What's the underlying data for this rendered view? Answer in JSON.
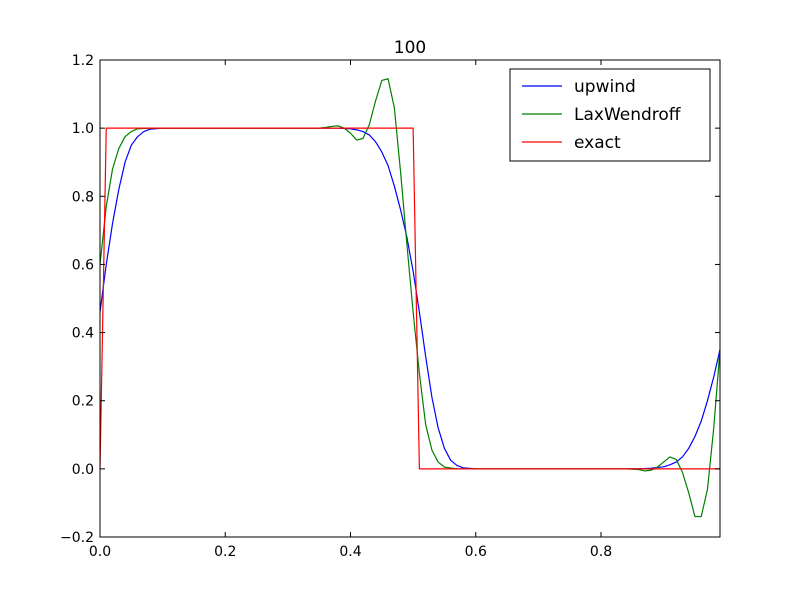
{
  "chart_data": {
    "type": "line",
    "title": "100",
    "xlabel": "",
    "ylabel": "",
    "xlim": [
      0.0,
      0.99
    ],
    "ylim": [
      -0.2,
      1.2
    ],
    "xticks": [
      "0.0",
      "0.2",
      "0.4",
      "0.6",
      "0.8"
    ],
    "xtick_values": [
      0.0,
      0.2,
      0.4,
      0.6,
      0.8
    ],
    "yticks": [
      "−0.2",
      "0.0",
      "0.2",
      "0.4",
      "0.6",
      "0.8",
      "1.0",
      "1.2"
    ],
    "ytick_values": [
      -0.2,
      0.0,
      0.2,
      0.4,
      0.6,
      0.8,
      1.0,
      1.2
    ],
    "grid": false,
    "legend_position": "top-right",
    "series": [
      {
        "name": "upwind",
        "color": "#0000ff",
        "points": [
          [
            0.0,
            0.46
          ],
          [
            0.01,
            0.6
          ],
          [
            0.02,
            0.72
          ],
          [
            0.03,
            0.82
          ],
          [
            0.04,
            0.9
          ],
          [
            0.05,
            0.95
          ],
          [
            0.06,
            0.975
          ],
          [
            0.07,
            0.99
          ],
          [
            0.08,
            0.997
          ],
          [
            0.1,
            1.0
          ],
          [
            0.3,
            1.0
          ],
          [
            0.36,
            1.0
          ],
          [
            0.38,
            1.0
          ],
          [
            0.4,
            0.998
          ],
          [
            0.41,
            0.995
          ],
          [
            0.42,
            0.99
          ],
          [
            0.43,
            0.98
          ],
          [
            0.44,
            0.96
          ],
          [
            0.45,
            0.93
          ],
          [
            0.46,
            0.89
          ],
          [
            0.47,
            0.83
          ],
          [
            0.48,
            0.76
          ],
          [
            0.49,
            0.68
          ],
          [
            0.5,
            0.58
          ],
          [
            0.51,
            0.46
          ],
          [
            0.52,
            0.33
          ],
          [
            0.53,
            0.21
          ],
          [
            0.54,
            0.12
          ],
          [
            0.55,
            0.06
          ],
          [
            0.56,
            0.025
          ],
          [
            0.57,
            0.01
          ],
          [
            0.58,
            0.003
          ],
          [
            0.6,
            0.0
          ],
          [
            0.86,
            0.0
          ],
          [
            0.88,
            0.002
          ],
          [
            0.9,
            0.006
          ],
          [
            0.91,
            0.012
          ],
          [
            0.92,
            0.02
          ],
          [
            0.93,
            0.035
          ],
          [
            0.94,
            0.06
          ],
          [
            0.95,
            0.095
          ],
          [
            0.96,
            0.14
          ],
          [
            0.97,
            0.2
          ],
          [
            0.98,
            0.27
          ],
          [
            0.99,
            0.35
          ]
        ]
      },
      {
        "name": "LaxWendroff",
        "color": "#008000",
        "points": [
          [
            0.0,
            0.6
          ],
          [
            0.01,
            0.77
          ],
          [
            0.02,
            0.88
          ],
          [
            0.03,
            0.94
          ],
          [
            0.04,
            0.975
          ],
          [
            0.05,
            0.99
          ],
          [
            0.06,
            0.998
          ],
          [
            0.08,
            1.0
          ],
          [
            0.32,
            1.0
          ],
          [
            0.35,
            1.0
          ],
          [
            0.36,
            1.002
          ],
          [
            0.37,
            1.005
          ],
          [
            0.38,
            1.007
          ],
          [
            0.39,
            1.0
          ],
          [
            0.4,
            0.985
          ],
          [
            0.41,
            0.965
          ],
          [
            0.42,
            0.97
          ],
          [
            0.43,
            1.01
          ],
          [
            0.44,
            1.08
          ],
          [
            0.45,
            1.14
          ],
          [
            0.46,
            1.145
          ],
          [
            0.47,
            1.06
          ],
          [
            0.48,
            0.87
          ],
          [
            0.49,
            0.66
          ],
          [
            0.5,
            0.46
          ],
          [
            0.51,
            0.28
          ],
          [
            0.52,
            0.13
          ],
          [
            0.53,
            0.055
          ],
          [
            0.54,
            0.02
          ],
          [
            0.55,
            0.005
          ],
          [
            0.57,
            0.0
          ],
          [
            0.84,
            0.0
          ],
          [
            0.86,
            -0.002
          ],
          [
            0.87,
            -0.006
          ],
          [
            0.88,
            -0.004
          ],
          [
            0.89,
            0.005
          ],
          [
            0.9,
            0.02
          ],
          [
            0.91,
            0.035
          ],
          [
            0.92,
            0.028
          ],
          [
            0.93,
            -0.01
          ],
          [
            0.94,
            -0.07
          ],
          [
            0.95,
            -0.14
          ],
          [
            0.96,
            -0.14
          ],
          [
            0.97,
            -0.06
          ],
          [
            0.98,
            0.12
          ],
          [
            0.99,
            0.35
          ]
        ]
      },
      {
        "name": "exact",
        "color": "#ff0000",
        "points": [
          [
            0.0,
            0.0
          ],
          [
            0.01,
            1.0
          ],
          [
            0.5,
            1.0
          ],
          [
            0.51,
            0.0
          ],
          [
            0.99,
            0.0
          ]
        ]
      }
    ]
  }
}
